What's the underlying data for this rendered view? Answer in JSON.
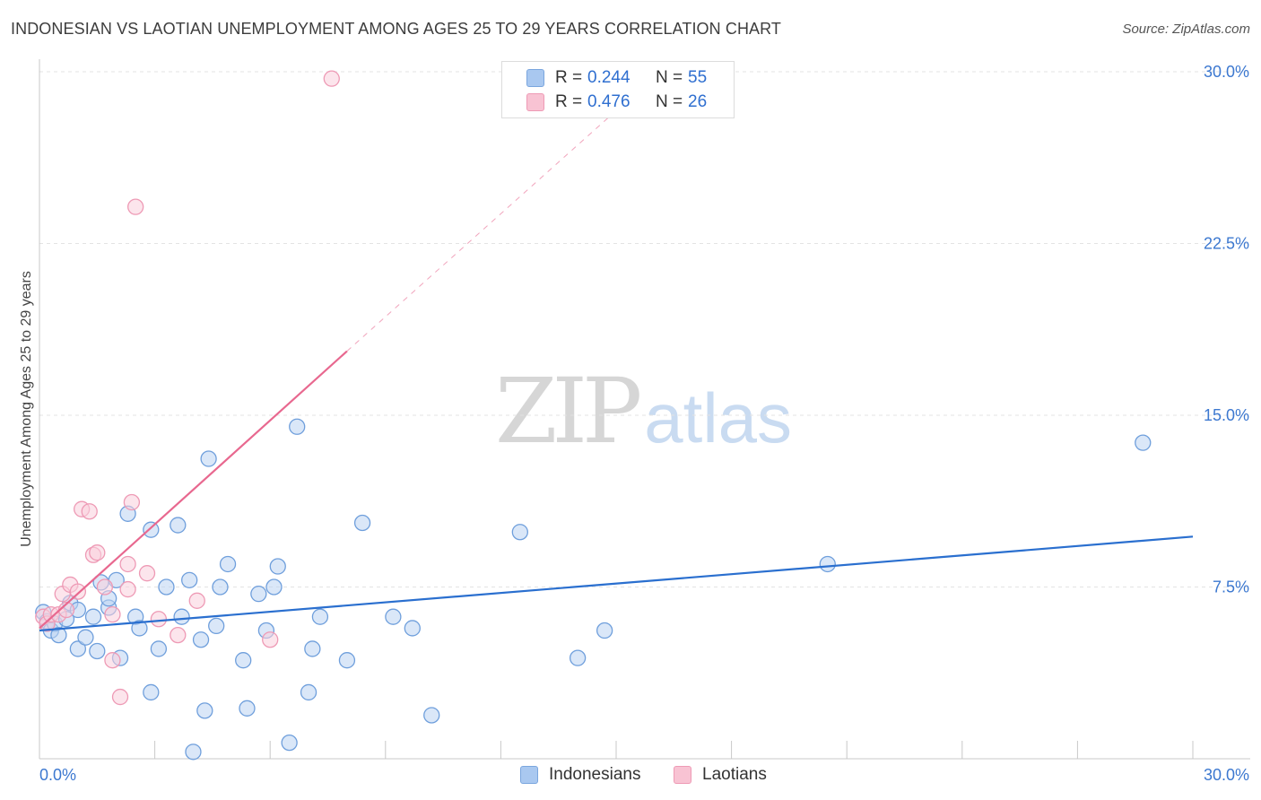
{
  "title": "INDONESIAN VS LAOTIAN UNEMPLOYMENT AMONG AGES 25 TO 29 YEARS CORRELATION CHART",
  "source": "Source: ZipAtlas.com",
  "watermark": {
    "zip": "ZIP",
    "atlas": "atlas"
  },
  "legend": {
    "rows": [
      {
        "r_label": "R =",
        "r_value": "0.244",
        "n_label": "N =",
        "n_value": "55",
        "color": "#a9c8f0",
        "border": "#7aa6de"
      },
      {
        "r_label": "R =",
        "r_value": "0.476",
        "n_label": "N =",
        "n_value": "26",
        "color": "#f8c3d3",
        "border": "#ee9ab5"
      }
    ]
  },
  "bottom_legend": [
    {
      "label": "Indonesians",
      "color": "#a9c8f0",
      "border": "#7aa6de"
    },
    {
      "label": "Laotians",
      "color": "#f8c3d3",
      "border": "#ee9ab5"
    }
  ],
  "chart_data": {
    "type": "scatter",
    "title": "INDONESIAN VS LAOTIAN UNEMPLOYMENT AMONG AGES 25 TO 29 YEARS CORRELATION CHART",
    "xlabel": "",
    "ylabel": "Unemployment Among Ages 25 to 29 years",
    "xlim": [
      0,
      30
    ],
    "ylim": [
      0,
      30
    ],
    "x_tick_labels": [
      {
        "value": 0,
        "label": "0.0%"
      },
      {
        "value": 30,
        "label": "30.0%"
      }
    ],
    "y_tick_labels": [
      {
        "value": 7.5,
        "label": "7.5%"
      },
      {
        "value": 15,
        "label": "15.0%"
      },
      {
        "value": 22.5,
        "label": "22.5%"
      },
      {
        "value": 30,
        "label": "30.0%"
      }
    ],
    "grid": true,
    "legend_position": "top-center",
    "series": [
      {
        "name": "Indonesians",
        "color": "#6f9fdc",
        "fill": "#bcd4f3",
        "trend": {
          "x": [
            0,
            30
          ],
          "y": [
            5.6,
            9.7
          ],
          "color": "#2a6fcf"
        },
        "points": [
          [
            0.1,
            6.4
          ],
          [
            0.2,
            6.0
          ],
          [
            0.3,
            5.6
          ],
          [
            0.4,
            5.9
          ],
          [
            0.5,
            5.4
          ],
          [
            0.7,
            6.1
          ],
          [
            0.8,
            6.8
          ],
          [
            1.0,
            6.5
          ],
          [
            1.0,
            4.8
          ],
          [
            1.2,
            5.3
          ],
          [
            1.4,
            6.2
          ],
          [
            1.5,
            4.7
          ],
          [
            1.6,
            7.7
          ],
          [
            1.8,
            6.6
          ],
          [
            1.8,
            7.0
          ],
          [
            2.0,
            7.8
          ],
          [
            2.1,
            4.4
          ],
          [
            2.3,
            10.7
          ],
          [
            2.5,
            6.2
          ],
          [
            2.6,
            5.7
          ],
          [
            2.9,
            2.9
          ],
          [
            2.9,
            10.0
          ],
          [
            3.1,
            4.8
          ],
          [
            3.3,
            7.5
          ],
          [
            3.6,
            10.2
          ],
          [
            3.7,
            6.2
          ],
          [
            3.9,
            7.8
          ],
          [
            4.0,
            0.3
          ],
          [
            4.2,
            5.2
          ],
          [
            4.3,
            2.1
          ],
          [
            4.4,
            13.1
          ],
          [
            4.6,
            5.8
          ],
          [
            4.7,
            7.5
          ],
          [
            4.9,
            8.5
          ],
          [
            5.3,
            4.3
          ],
          [
            5.4,
            2.2
          ],
          [
            5.7,
            7.2
          ],
          [
            5.9,
            5.6
          ],
          [
            6.1,
            7.5
          ],
          [
            6.2,
            8.4
          ],
          [
            6.5,
            0.7
          ],
          [
            6.7,
            14.5
          ],
          [
            7.0,
            2.9
          ],
          [
            7.1,
            4.8
          ],
          [
            7.3,
            6.2
          ],
          [
            8.0,
            4.3
          ],
          [
            8.4,
            10.3
          ],
          [
            9.2,
            6.2
          ],
          [
            9.7,
            5.7
          ],
          [
            10.2,
            1.9
          ],
          [
            12.5,
            9.9
          ],
          [
            14.0,
            4.4
          ],
          [
            14.7,
            5.6
          ],
          [
            20.5,
            8.5
          ],
          [
            28.7,
            13.8
          ]
        ]
      },
      {
        "name": "Laotians",
        "color": "#ee9ab5",
        "fill": "#f9d0dd",
        "trend": {
          "x": [
            0,
            8.0
          ],
          "y": [
            5.7,
            17.8
          ],
          "dashed_to": {
            "x": 15.0,
            "y": 28.3
          },
          "color": "#e8688f"
        },
        "points": [
          [
            0.1,
            6.2
          ],
          [
            0.2,
            5.9
          ],
          [
            0.3,
            6.3
          ],
          [
            0.5,
            6.3
          ],
          [
            0.6,
            7.2
          ],
          [
            0.7,
            6.5
          ],
          [
            0.8,
            7.6
          ],
          [
            1.0,
            7.3
          ],
          [
            1.1,
            10.9
          ],
          [
            1.3,
            10.8
          ],
          [
            1.4,
            8.9
          ],
          [
            1.5,
            9.0
          ],
          [
            1.7,
            7.5
          ],
          [
            1.9,
            6.3
          ],
          [
            1.9,
            4.3
          ],
          [
            2.1,
            2.7
          ],
          [
            2.3,
            8.5
          ],
          [
            2.3,
            7.4
          ],
          [
            2.4,
            11.2
          ],
          [
            2.5,
            24.1
          ],
          [
            2.8,
            8.1
          ],
          [
            3.1,
            6.1
          ],
          [
            3.6,
            5.4
          ],
          [
            4.1,
            6.9
          ],
          [
            6.0,
            5.2
          ],
          [
            7.6,
            29.7
          ]
        ]
      }
    ]
  }
}
